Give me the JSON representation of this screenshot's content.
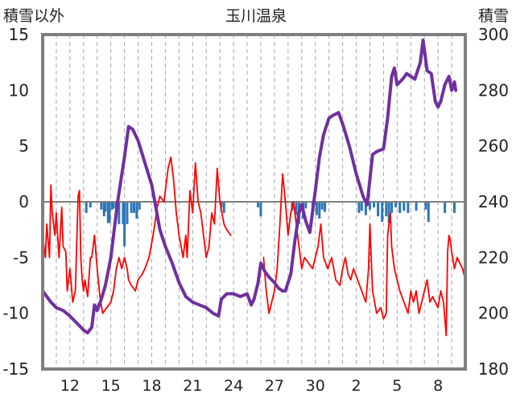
{
  "chart_data": {
    "type": "line",
    "title": "玉川温泉",
    "left_axis_label": "積雪以外",
    "right_axis_label": "積雪",
    "left_ylim": [
      -15,
      15
    ],
    "right_ylim": [
      180,
      300
    ],
    "left_ticks": [
      15,
      10,
      5,
      0,
      -5,
      -10,
      -15
    ],
    "right_ticks": [
      300,
      280,
      260,
      240,
      220,
      200,
      180
    ],
    "x_ticks": [
      {
        "x": 2,
        "label": "12"
      },
      {
        "x": 5,
        "label": "15"
      },
      {
        "x": 8,
        "label": "18"
      },
      {
        "x": 11,
        "label": "21"
      },
      {
        "x": 14,
        "label": "24"
      },
      {
        "x": 17,
        "label": "27"
      },
      {
        "x": 20,
        "label": "30"
      },
      {
        "x": 23,
        "label": "2"
      },
      {
        "x": 26,
        "label": "5"
      },
      {
        "x": 29,
        "label": "8"
      }
    ],
    "x_range": [
      0,
      31
    ],
    "grid": "vertical dashed daily",
    "colors": {
      "temperature": "#ff0000",
      "snow_depth": "#7030a0",
      "precipitation": "#2e75b6",
      "zero_line": "#7f7f7f",
      "frame": "#7f7f7f"
    },
    "series": [
      {
        "axis": "left",
        "color": "#ff0000",
        "points": [
          [
            0,
            -3
          ],
          [
            0.2,
            -5
          ],
          [
            0.3,
            -2
          ],
          [
            0.5,
            -5
          ],
          [
            0.6,
            1.5
          ],
          [
            0.7,
            -1
          ],
          [
            0.9,
            -3
          ],
          [
            1.0,
            -1
          ],
          [
            1.2,
            -5
          ],
          [
            1.4,
            -0.5
          ],
          [
            1.5,
            -4
          ],
          [
            1.7,
            -4.5
          ],
          [
            1.8,
            -8
          ],
          [
            2.0,
            -6
          ],
          [
            2.2,
            -9
          ],
          [
            2.4,
            -8
          ],
          [
            2.6,
            0.5
          ],
          [
            2.7,
            1
          ],
          [
            2.8,
            -5
          ],
          [
            2.9,
            -7
          ],
          [
            3.0,
            -8
          ],
          [
            3.1,
            -7
          ],
          [
            3.3,
            -8.5
          ],
          [
            3.5,
            -5
          ],
          [
            3.6,
            -5
          ],
          [
            3.8,
            -3
          ],
          [
            4.0,
            -6
          ],
          [
            4.2,
            -8.5
          ],
          [
            4.4,
            -10
          ],
          [
            4.7,
            -9.5
          ],
          [
            5.0,
            -9
          ],
          [
            5.2,
            -8
          ],
          [
            5.4,
            -6
          ],
          [
            5.6,
            -5
          ],
          [
            5.8,
            -6
          ],
          [
            6.0,
            -5
          ],
          [
            6.2,
            -6
          ],
          [
            6.3,
            -7
          ],
          [
            6.5,
            -7.5
          ],
          [
            6.8,
            -8
          ],
          [
            7.0,
            -7
          ],
          [
            7.3,
            -6.5
          ],
          [
            7.5,
            -6
          ],
          [
            7.8,
            -5
          ],
          [
            8.1,
            -3
          ],
          [
            8.4,
            -0.5
          ],
          [
            8.6,
            0.5
          ],
          [
            8.9,
            0
          ],
          [
            9.2,
            3
          ],
          [
            9.4,
            4
          ],
          [
            9.6,
            2
          ],
          [
            9.8,
            -1
          ],
          [
            10.0,
            -3
          ],
          [
            10.3,
            -5
          ],
          [
            10.5,
            -3
          ],
          [
            10.6,
            -5
          ],
          [
            10.8,
            1
          ],
          [
            11.0,
            -1
          ],
          [
            11.2,
            3.5
          ],
          [
            11.4,
            0
          ],
          [
            11.6,
            -1
          ],
          [
            11.8,
            -3
          ],
          [
            12.0,
            -5
          ],
          [
            12.2,
            -4
          ],
          [
            12.4,
            -1
          ],
          [
            12.6,
            -2
          ],
          [
            12.8,
            3
          ],
          [
            13.0,
            0
          ],
          [
            13.3,
            -2
          ],
          [
            13.5,
            -2.5
          ],
          [
            13.8,
            -3
          ]
        ]
      },
      {
        "axis": "left",
        "color": "#ff0000",
        "points": [
          [
            16.2,
            -5
          ],
          [
            16.4,
            -8
          ],
          [
            16.6,
            -10
          ],
          [
            16.8,
            -9
          ],
          [
            17.0,
            -8
          ],
          [
            17.2,
            -6
          ],
          [
            17.4,
            -2
          ],
          [
            17.6,
            2.5
          ],
          [
            17.8,
            0
          ],
          [
            18.0,
            -3
          ],
          [
            18.2,
            -1
          ],
          [
            18.4,
            0
          ],
          [
            18.6,
            -2
          ],
          [
            18.8,
            -4
          ],
          [
            19.0,
            -6
          ],
          [
            19.2,
            -5
          ],
          [
            19.5,
            -5.5
          ],
          [
            19.8,
            -6
          ],
          [
            20.0,
            -5
          ],
          [
            20.2,
            -4
          ],
          [
            20.4,
            -2
          ],
          [
            20.6,
            -5
          ],
          [
            20.9,
            -6
          ],
          [
            21.2,
            -5
          ],
          [
            21.5,
            -7
          ],
          [
            21.8,
            -7.5
          ],
          [
            22.0,
            -6
          ],
          [
            22.2,
            -5
          ],
          [
            22.4,
            -6.5
          ],
          [
            22.6,
            -7
          ],
          [
            22.8,
            -6
          ],
          [
            23.1,
            -7
          ],
          [
            23.4,
            -8
          ],
          [
            23.7,
            -9
          ],
          [
            23.9,
            -6
          ],
          [
            24.0,
            -2
          ],
          [
            24.1,
            -5
          ],
          [
            24.2,
            -8
          ],
          [
            24.5,
            -10
          ],
          [
            24.8,
            -9.5
          ],
          [
            25.0,
            -10.5
          ],
          [
            25.2,
            -10
          ],
          [
            25.3,
            -3
          ],
          [
            25.5,
            -1
          ],
          [
            25.6,
            -4
          ],
          [
            25.8,
            -6
          ],
          [
            26.0,
            -7
          ],
          [
            26.2,
            -8
          ],
          [
            26.5,
            -9
          ],
          [
            26.8,
            -10
          ],
          [
            27.0,
            -8
          ],
          [
            27.2,
            -9
          ],
          [
            27.4,
            -8
          ],
          [
            27.6,
            -10
          ],
          [
            27.8,
            -9
          ],
          [
            28.0,
            -8
          ],
          [
            28.2,
            -7
          ],
          [
            28.4,
            -9
          ],
          [
            28.6,
            -8.5
          ],
          [
            28.8,
            -9
          ],
          [
            29.0,
            -9.5
          ],
          [
            29.2,
            -8
          ],
          [
            29.4,
            -9
          ],
          [
            29.5,
            -10.5
          ],
          [
            29.6,
            -12
          ],
          [
            29.7,
            -4.5
          ],
          [
            29.8,
            -3
          ],
          [
            29.9,
            -3.5
          ],
          [
            30.0,
            -4.5
          ],
          [
            30.2,
            -6
          ],
          [
            30.4,
            -5
          ],
          [
            30.6,
            -5.5
          ],
          [
            30.8,
            -6
          ],
          [
            31,
            -7
          ]
        ]
      },
      {
        "axis": "right",
        "color": "#7030a0",
        "points": [
          [
            0,
            208
          ],
          [
            0.6,
            204
          ],
          [
            1.0,
            202
          ],
          [
            1.5,
            201
          ],
          [
            2.0,
            199
          ],
          [
            2.6,
            196
          ],
          [
            3.0,
            194
          ],
          [
            3.3,
            193
          ],
          [
            3.6,
            195
          ],
          [
            3.8,
            203
          ],
          [
            4.0,
            201
          ],
          [
            4.3,
            205
          ],
          [
            4.6,
            210
          ],
          [
            5.0,
            220
          ],
          [
            5.5,
            240
          ],
          [
            6.0,
            256
          ],
          [
            6.3,
            267
          ],
          [
            6.6,
            266
          ],
          [
            7.0,
            262
          ],
          [
            7.5,
            254
          ],
          [
            8.0,
            246
          ],
          [
            8.3,
            238
          ],
          [
            8.6,
            230
          ],
          [
            9.0,
            224
          ],
          [
            9.5,
            218
          ],
          [
            10.0,
            211
          ],
          [
            10.5,
            206
          ],
          [
            11.0,
            204
          ],
          [
            11.5,
            203
          ],
          [
            12.0,
            202
          ],
          [
            12.5,
            200
          ],
          [
            12.9,
            199
          ],
          [
            13.1,
            205
          ],
          [
            13.5,
            207
          ],
          [
            14.0,
            207
          ],
          [
            14.5,
            206
          ],
          [
            15.0,
            207
          ],
          [
            15.3,
            203
          ],
          [
            15.5,
            205
          ],
          [
            15.8,
            211
          ],
          [
            16.0,
            218
          ],
          [
            16.3,
            215
          ],
          [
            16.6,
            213
          ],
          [
            17.0,
            211
          ],
          [
            17.3,
            209
          ],
          [
            17.6,
            208
          ],
          [
            17.8,
            208
          ],
          [
            18.0,
            211
          ],
          [
            18.2,
            214
          ],
          [
            18.5,
            226
          ],
          [
            18.8,
            236
          ],
          [
            19.0,
            239
          ],
          [
            19.3,
            233
          ],
          [
            19.6,
            229
          ],
          [
            20.0,
            244
          ],
          [
            20.3,
            256
          ],
          [
            20.6,
            264
          ],
          [
            21.0,
            270
          ],
          [
            21.3,
            271
          ],
          [
            21.7,
            272
          ],
          [
            22.0,
            268
          ],
          [
            22.5,
            260
          ],
          [
            23.0,
            250
          ],
          [
            23.5,
            242
          ],
          [
            23.8,
            239
          ],
          [
            24.2,
            257
          ],
          [
            24.5,
            258
          ],
          [
            25.0,
            259
          ],
          [
            25.3,
            270
          ],
          [
            25.6,
            285
          ],
          [
            25.8,
            288
          ],
          [
            26.0,
            282
          ],
          [
            26.4,
            284
          ],
          [
            26.7,
            286
          ],
          [
            27.0,
            285
          ],
          [
            27.3,
            284
          ],
          [
            27.7,
            290
          ],
          [
            27.9,
            298
          ],
          [
            28.2,
            287
          ],
          [
            28.5,
            286
          ],
          [
            28.8,
            276
          ],
          [
            29.0,
            274
          ],
          [
            29.2,
            276
          ],
          [
            29.5,
            282
          ],
          [
            29.8,
            285
          ],
          [
            30.0,
            280
          ],
          [
            30.2,
            283
          ],
          [
            30.3,
            280
          ]
        ]
      }
    ],
    "precipitation_bars": [
      {
        "x": 3.2,
        "value": -1
      },
      {
        "x": 3.5,
        "value": -0.5
      },
      {
        "x": 4.3,
        "value": -0.7
      },
      {
        "x": 4.5,
        "value": -1.3
      },
      {
        "x": 4.6,
        "value": -0.9
      },
      {
        "x": 4.8,
        "value": -1.9
      },
      {
        "x": 4.9,
        "value": -1.9
      },
      {
        "x": 5.1,
        "value": -0.7
      },
      {
        "x": 5.2,
        "value": -0.6
      },
      {
        "x": 5.4,
        "value": -1
      },
      {
        "x": 5.6,
        "value": -2
      },
      {
        "x": 5.9,
        "value": -2
      },
      {
        "x": 6.0,
        "value": -4
      },
      {
        "x": 6.2,
        "value": -2
      },
      {
        "x": 6.5,
        "value": -1
      },
      {
        "x": 6.7,
        "value": -1
      },
      {
        "x": 6.9,
        "value": -1.5
      },
      {
        "x": 7.1,
        "value": -0.7
      },
      {
        "x": 13.1,
        "value": -0.5
      },
      {
        "x": 13.3,
        "value": -1
      },
      {
        "x": 15.8,
        "value": -0.5
      },
      {
        "x": 16.0,
        "value": -1.3
      },
      {
        "x": 18.3,
        "value": -0.8
      },
      {
        "x": 18.6,
        "value": -1.2
      },
      {
        "x": 18.8,
        "value": -2
      },
      {
        "x": 19.1,
        "value": -1.5
      },
      {
        "x": 19.3,
        "value": -0.6
      },
      {
        "x": 19.8,
        "value": -0.9
      },
      {
        "x": 20.1,
        "value": -1.2
      },
      {
        "x": 20.3,
        "value": -1.5
      },
      {
        "x": 20.5,
        "value": -0.7
      },
      {
        "x": 20.7,
        "value": -0.9
      },
      {
        "x": 23.2,
        "value": -1
      },
      {
        "x": 23.4,
        "value": -0.8
      },
      {
        "x": 23.7,
        "value": -1.2
      },
      {
        "x": 24.0,
        "value": -0.7
      },
      {
        "x": 24.3,
        "value": -0.5
      },
      {
        "x": 24.6,
        "value": -1.3
      },
      {
        "x": 24.9,
        "value": -1.8
      },
      {
        "x": 25.2,
        "value": -1.3
      },
      {
        "x": 25.4,
        "value": -1.9
      },
      {
        "x": 25.6,
        "value": -1
      },
      {
        "x": 25.9,
        "value": -0.5
      },
      {
        "x": 26.2,
        "value": -1
      },
      {
        "x": 26.5,
        "value": -0.8
      },
      {
        "x": 26.8,
        "value": -1
      },
      {
        "x": 27.4,
        "value": -0.8
      },
      {
        "x": 28.1,
        "value": -0.7
      },
      {
        "x": 28.3,
        "value": -1.8
      },
      {
        "x": 29.5,
        "value": -1
      },
      {
        "x": 30.2,
        "value": -1
      }
    ]
  }
}
